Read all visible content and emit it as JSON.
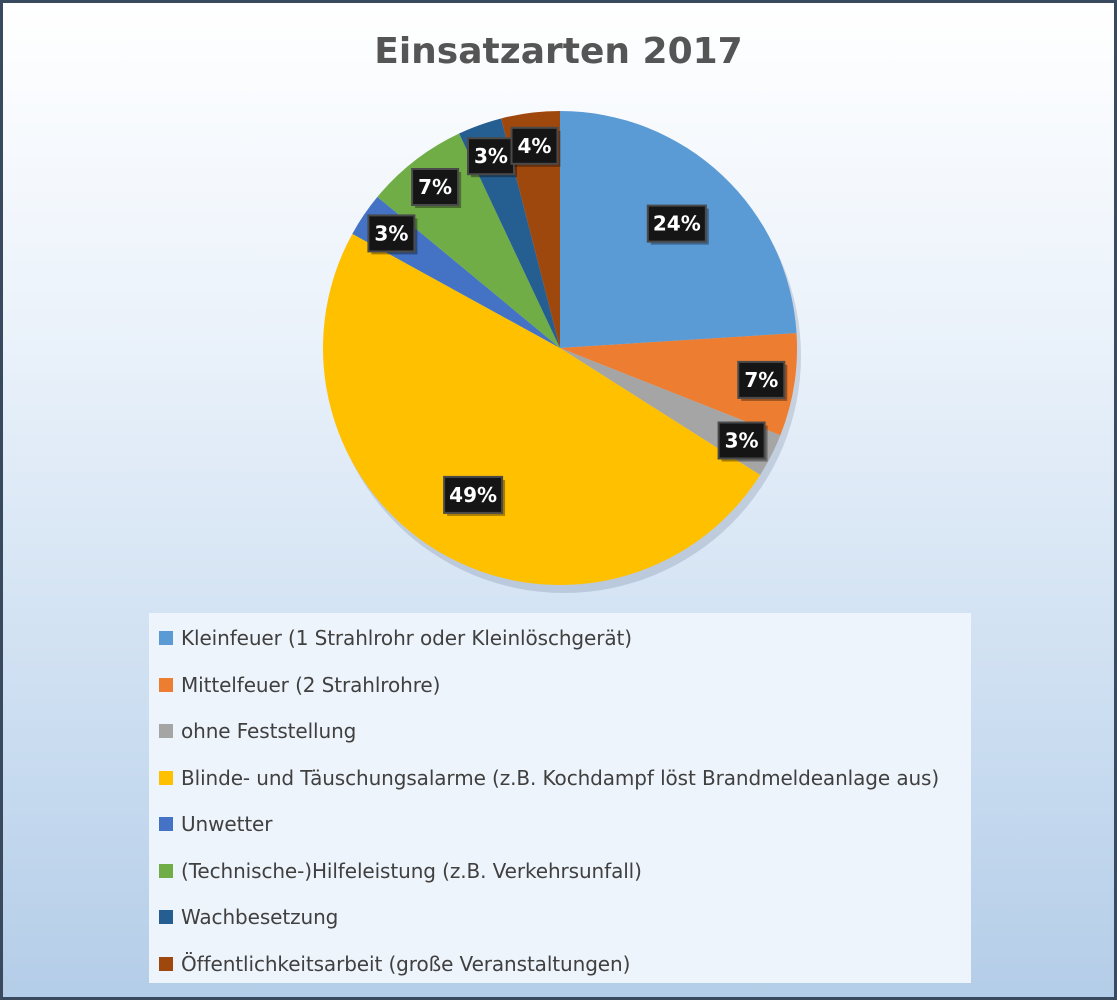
{
  "chart_data": {
    "type": "pie",
    "title": "Einsatzarten 2017",
    "legend_position": "bottom",
    "slices": [
      {
        "label": "Kleinfeuer (1 Strahlrohr oder Kleinlöschgerät)",
        "value": 24,
        "display": "24%",
        "color": "#5b9bd5"
      },
      {
        "label": "Mittelfeuer (2 Strahlrohre)",
        "value": 7,
        "display": "7%",
        "color": "#ed7d31"
      },
      {
        "label": "ohne Feststellung",
        "value": 3,
        "display": "3%",
        "color": "#a5a5a5"
      },
      {
        "label": "Blinde- und Täuschungsalarme (z.B. Kochdampf löst Brandmeldeanlage aus)",
        "value": 49,
        "display": "49%",
        "color": "#ffc000"
      },
      {
        "label": "Unwetter",
        "value": 3,
        "display": "3%",
        "color": "#4472c4"
      },
      {
        "label": "(Technische-)Hilfeleistung (z.B. Verkehrsunfall)",
        "value": 7,
        "display": "7%",
        "color": "#70ad47"
      },
      {
        "label": "Wachbesetzung",
        "value": 3,
        "display": "3%",
        "color": "#255e91"
      },
      {
        "label": "Öffentlichkeitsarbeit (große Veranstaltungen)",
        "value": 4,
        "display": "4%",
        "color": "#9e480e"
      }
    ]
  }
}
